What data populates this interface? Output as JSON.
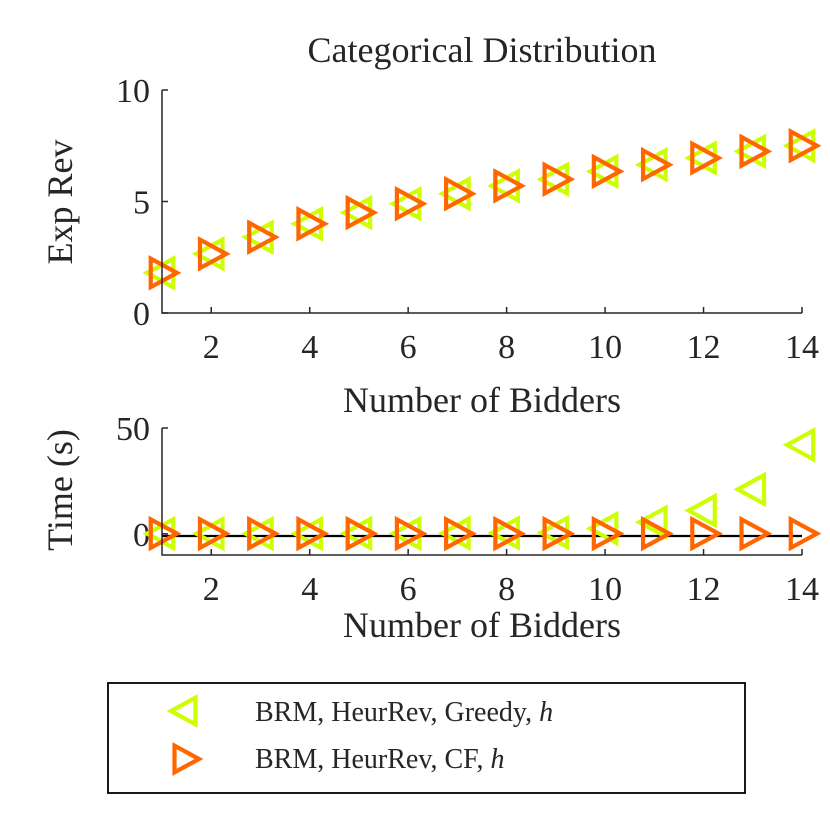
{
  "chart_data": [
    {
      "type": "scatter",
      "title": "Categorical Distribution",
      "xlabel": "Number of Bidders",
      "ylabel": "Exp Rev",
      "xlim": [
        1,
        14
      ],
      "ylim": [
        0,
        10
      ],
      "xticks": [
        "2",
        "4",
        "6",
        "8",
        "10",
        "12",
        "14"
      ],
      "yticks": [
        "0",
        "5",
        "10"
      ],
      "x": [
        1,
        2,
        3,
        4,
        5,
        6,
        7,
        8,
        9,
        10,
        11,
        12,
        13,
        14
      ],
      "series": [
        {
          "name": "BRM, HeurRev, Greedy, h",
          "color": "#ccff00",
          "marker": "triangle-left",
          "values": [
            1.8,
            2.65,
            3.4,
            4.0,
            4.5,
            4.9,
            5.35,
            5.7,
            6.0,
            6.35,
            6.65,
            6.95,
            7.25,
            7.5
          ]
        },
        {
          "name": "BRM, HeurRev, CF, h",
          "color": "#ff6600",
          "marker": "triangle-right",
          "values": [
            1.8,
            2.65,
            3.4,
            4.0,
            4.5,
            4.9,
            5.35,
            5.7,
            6.0,
            6.35,
            6.65,
            6.95,
            7.25,
            7.5
          ]
        }
      ]
    },
    {
      "type": "scatter",
      "title": "",
      "xlabel": "Number of Bidders",
      "ylabel": "Time (s)",
      "xlim": [
        1,
        14
      ],
      "ylim": [
        -10,
        50
      ],
      "xticks": [
        "2",
        "4",
        "6",
        "8",
        "10",
        "12",
        "14"
      ],
      "yticks": [
        "0",
        "50"
      ],
      "x": [
        1,
        2,
        3,
        4,
        5,
        6,
        7,
        8,
        9,
        10,
        11,
        12,
        13,
        14
      ],
      "series": [
        {
          "name": "BRM, HeurRev, Greedy, h",
          "color": "#ccff00",
          "marker": "triangle-left",
          "values": [
            0.1,
            0.1,
            0.1,
            0.1,
            0.2,
            0.2,
            0.3,
            0.4,
            0.6,
            2.5,
            5.5,
            11,
            21,
            42
          ]
        },
        {
          "name": "BRM, HeurRev, CF, h",
          "color": "#ff6600",
          "marker": "triangle-right",
          "values": [
            0.1,
            0.1,
            0.1,
            0.1,
            0.1,
            0.1,
            0.1,
            0.1,
            0.1,
            0.1,
            0.1,
            0.1,
            0.1,
            0.1
          ]
        }
      ]
    }
  ],
  "legend": {
    "placement": "bottom",
    "items": [
      {
        "prefix": "BRM, HeurRev, Greedy, ",
        "var": "h",
        "color": "#ccff00",
        "marker": "triangle-left"
      },
      {
        "prefix": "BRM, HeurRev, CF, ",
        "var": "h",
        "color": "#ff6600",
        "marker": "triangle-right"
      }
    ]
  }
}
